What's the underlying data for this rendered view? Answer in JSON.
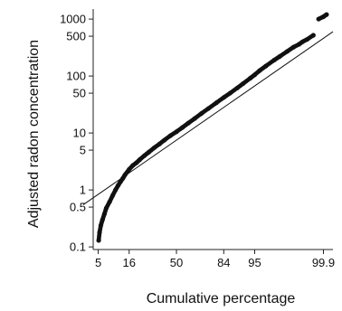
{
  "chart_data": {
    "type": "scatter",
    "title": "",
    "xlabel": "Cumulative percentage",
    "ylabel": "Adjusted radon concentration",
    "x_scale": "normal-probability",
    "y_scale": "log",
    "x_ticks": [
      5,
      16,
      50,
      84,
      95,
      99.9
    ],
    "y_ticks": [
      0.1,
      0.5,
      1,
      5,
      10,
      50,
      100,
      500,
      1000
    ],
    "xlim": [
      4,
      99.95
    ],
    "ylim": [
      0.09,
      1500
    ],
    "grid": false,
    "legend": "none",
    "fit_line": {
      "x": [
        2.5,
        99.95
      ],
      "y": [
        0.55,
        600
      ]
    },
    "points": {
      "x": [
        5.1,
        5.3,
        5.6,
        6,
        6.5,
        7,
        8,
        9,
        10,
        11,
        12,
        13,
        14,
        16,
        18,
        20,
        22,
        25,
        28,
        32,
        36,
        40,
        45,
        50,
        55,
        60,
        65,
        70,
        75,
        80,
        84,
        87,
        90,
        92,
        94,
        95,
        96,
        97,
        98,
        98.5,
        99,
        99.3,
        99.5,
        99.6,
        99.7,
        99.8,
        99.86,
        99.9,
        99.92
      ],
      "y": [
        0.13,
        0.18,
        0.24,
        0.3,
        0.38,
        0.48,
        0.62,
        0.8,
        1.0,
        1.2,
        1.4,
        1.6,
        1.85,
        2.3,
        2.7,
        3.0,
        3.4,
        4.0,
        4.6,
        5.5,
        6.4,
        7.5,
        9.0,
        10.5,
        12.5,
        15,
        18,
        22,
        27,
        34,
        42,
        50,
        62,
        74,
        92,
        105,
        125,
        150,
        190,
        220,
        270,
        320,
        360,
        400,
        440,
        520,
        1000,
        1100,
        1200
      ]
    }
  }
}
